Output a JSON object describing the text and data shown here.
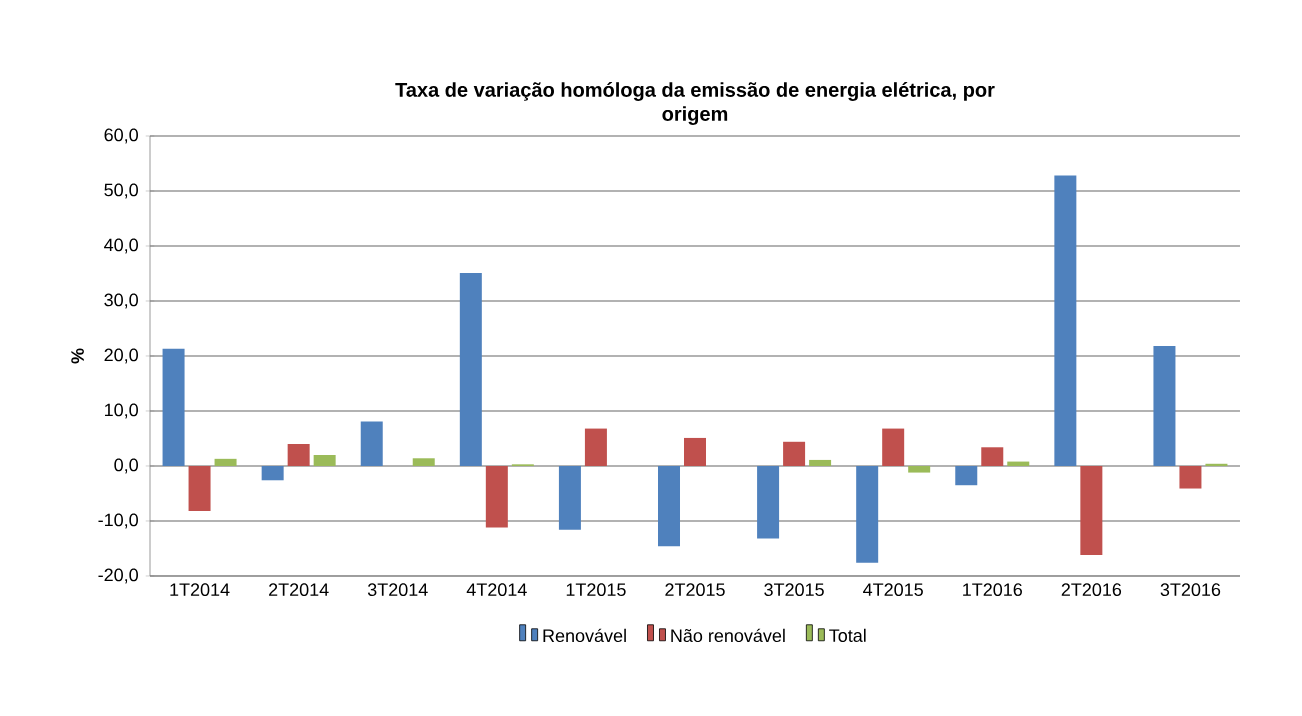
{
  "chart_data": {
    "type": "bar",
    "title": "Taxa de variação homóloga da emissão de energia elétrica, por origem",
    "ylabel": "%",
    "categories": [
      "1T2014",
      "2T2014",
      "3T2014",
      "4T2014",
      "1T2015",
      "2T2015",
      "3T2015",
      "4T2015",
      "1T2016",
      "2T2016",
      "3T2016"
    ],
    "series": [
      {
        "name": "Renovável",
        "color": "#4f81bd",
        "values": [
          21.3,
          -2.6,
          8.1,
          35.1,
          -11.6,
          -14.6,
          -13.2,
          -17.6,
          -3.5,
          52.8,
          21.8
        ]
      },
      {
        "name": "Não renovável",
        "color": "#c0504d",
        "values": [
          -8.2,
          4.0,
          0.0,
          -11.2,
          6.8,
          5.1,
          4.4,
          6.8,
          3.4,
          -16.2,
          -4.1
        ]
      },
      {
        "name": "Total",
        "color": "#9bbb59",
        "values": [
          1.3,
          2.0,
          1.4,
          0.3,
          0.0,
          0.0,
          1.1,
          -1.2,
          0.8,
          0.0,
          0.4
        ]
      }
    ],
    "ylim": [
      -20,
      60
    ],
    "yticks": [
      {
        "value": -20,
        "label": "-20,0"
      },
      {
        "value": -10,
        "label": "-10,0"
      },
      {
        "value": 0,
        "label": "0,0"
      },
      {
        "value": 10,
        "label": "10,0"
      },
      {
        "value": 20,
        "label": "20,0"
      },
      {
        "value": 30,
        "label": "30,0"
      },
      {
        "value": 40,
        "label": "40,0"
      },
      {
        "value": 50,
        "label": "50,0"
      },
      {
        "value": 60,
        "label": "60,0"
      }
    ],
    "grid": "y",
    "legend": "bottom"
  }
}
